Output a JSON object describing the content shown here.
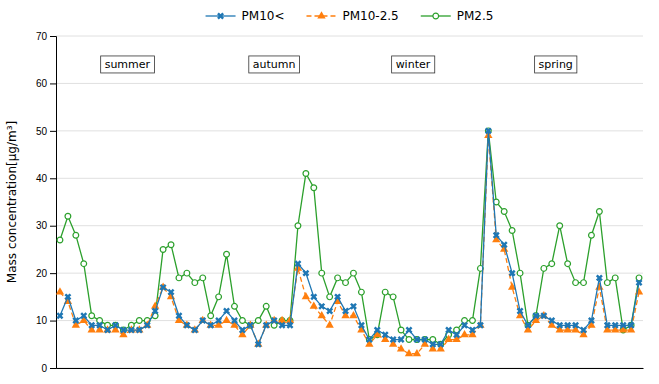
{
  "chart_data": {
    "type": "line",
    "y_label": "Mass concentration[μg/m³]",
    "ylim": [
      0,
      70
    ],
    "yticks": [
      0,
      10,
      20,
      30,
      40,
      50,
      60,
      70
    ],
    "grid": true,
    "tick_labels": "y",
    "categories": [
      null,
      null,
      null,
      null,
      null,
      null,
      null,
      null,
      null,
      null,
      null,
      null,
      null,
      null,
      null,
      null,
      null,
      null,
      null,
      null,
      null,
      null,
      null,
      null,
      null,
      null,
      null,
      null,
      null,
      null,
      null,
      null,
      null,
      null,
      null,
      null,
      null,
      null,
      null,
      null,
      null,
      null,
      null,
      null,
      null,
      null,
      null,
      null,
      null,
      null,
      null,
      null,
      null,
      null,
      null,
      null,
      null,
      null,
      null,
      null,
      null,
      null,
      null,
      null,
      null,
      null,
      null,
      null,
      null,
      null,
      null,
      null,
      null,
      null
    ],
    "series": [
      {
        "name": "PM10<",
        "marker": "x",
        "line_style": "solid",
        "values": [
          11,
          15,
          10,
          11,
          9,
          9,
          8,
          9,
          8,
          8,
          8,
          9,
          12,
          17,
          16,
          11,
          9,
          8,
          10,
          9,
          10,
          12,
          10,
          8,
          9,
          5,
          9,
          10,
          9,
          9,
          22,
          20,
          15,
          13,
          12,
          15,
          12,
          13,
          9,
          6,
          8,
          7,
          6,
          6,
          8,
          6,
          6,
          5,
          5,
          8,
          7,
          9,
          8,
          9,
          50,
          28,
          26,
          20,
          12,
          9,
          11,
          11,
          10,
          9,
          9,
          9,
          8,
          10,
          19,
          9,
          9,
          9,
          9,
          18
        ]
      },
      {
        "name": "PM10-2.5",
        "marker": "triangle",
        "line_style": "dashed",
        "values": [
          16,
          14,
          9,
          10,
          8,
          8,
          8,
          8,
          7,
          8,
          8,
          9,
          13,
          17,
          15,
          10,
          9,
          8,
          10,
          9,
          9,
          10,
          9,
          7,
          9,
          5,
          9,
          10,
          10,
          10,
          21,
          15,
          13,
          11,
          9,
          14,
          11,
          11,
          8,
          5,
          7,
          6,
          5,
          4,
          3,
          3,
          5,
          4,
          4,
          6,
          6,
          7,
          7,
          9,
          49,
          27,
          25,
          17,
          11,
          8,
          10,
          11,
          9,
          8,
          8,
          8,
          7,
          9,
          17,
          8,
          8,
          8,
          8,
          16
        ]
      },
      {
        "name": "PM2.5",
        "marker": "circle",
        "line_style": "solid",
        "values": [
          27,
          32,
          28,
          22,
          11,
          10,
          9,
          9,
          8,
          9,
          10,
          10,
          11,
          25,
          26,
          19,
          20,
          18,
          19,
          11,
          15,
          24,
          13,
          10,
          9,
          10,
          13,
          9,
          10,
          10,
          30,
          41,
          38,
          20,
          15,
          19,
          18,
          20,
          16,
          6,
          7,
          16,
          15,
          8,
          6,
          6,
          6,
          6,
          5,
          7,
          8,
          10,
          10,
          21,
          50,
          35,
          33,
          29,
          20,
          9,
          11,
          21,
          22,
          30,
          22,
          18,
          18,
          28,
          33,
          18,
          19,
          8,
          9,
          19
        ]
      }
    ],
    "annotations": [
      {
        "text": "summer",
        "x": 8.5,
        "y": 64
      },
      {
        "text": "autumn",
        "x": 27,
        "y": 64
      },
      {
        "text": "winter",
        "x": 44.5,
        "y": 64
      },
      {
        "text": "spring",
        "x": 62.5,
        "y": 64
      }
    ]
  }
}
